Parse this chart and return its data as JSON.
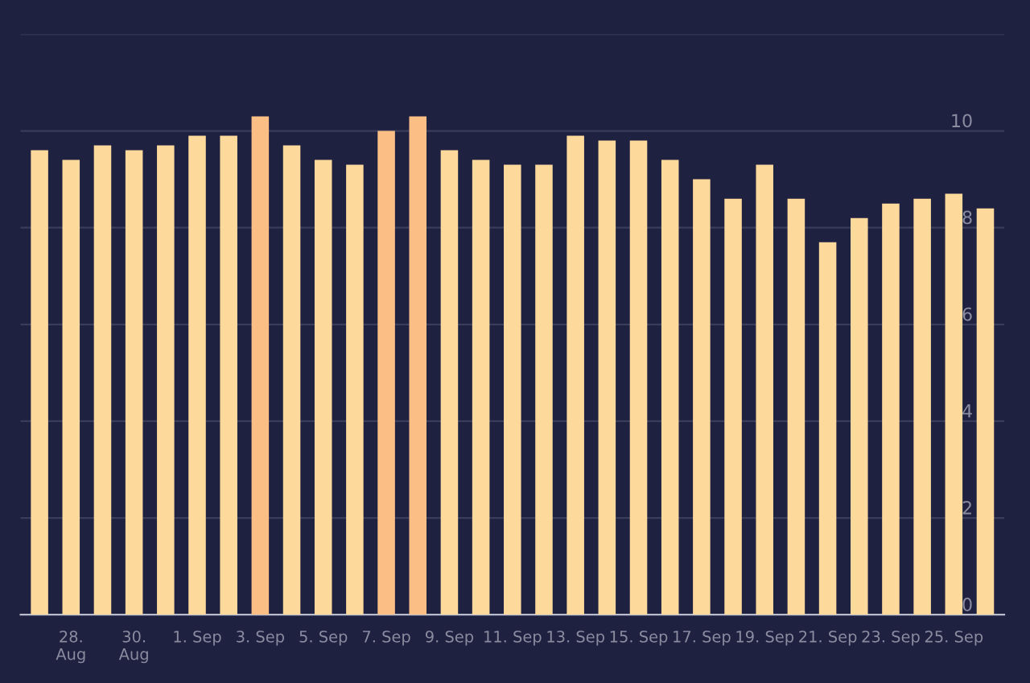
{
  "chart_data": {
    "type": "bar",
    "categories": [
      null,
      "28. Aug",
      null,
      "30. Aug",
      null,
      "1. Sep",
      null,
      "3. Sep",
      null,
      "5. Sep",
      null,
      "7. Sep",
      null,
      "9. Sep",
      null,
      "11. Sep",
      null,
      "13. Sep",
      null,
      "15. Sep",
      null,
      "17. Sep",
      null,
      "19. Sep",
      null,
      "21. Sep",
      null,
      "23. Sep",
      null,
      "25. Sep",
      null
    ],
    "values": [
      9.6,
      9.4,
      9.7,
      9.6,
      9.7,
      9.9,
      9.9,
      10.3,
      9.7,
      9.4,
      9.3,
      10.0,
      10.3,
      9.6,
      9.4,
      9.3,
      9.3,
      9.9,
      9.8,
      9.8,
      9.4,
      9.0,
      8.6,
      9.3,
      8.6,
      7.7,
      8.2,
      8.5,
      8.6,
      8.7,
      8.4
    ],
    "colors": [
      "#fdd99b",
      "#fdd99b",
      "#fdd99b",
      "#fdd99b",
      "#fdd99b",
      "#fdd99b",
      "#fdd99b",
      "#fbbf86",
      "#fdd99b",
      "#fdd99b",
      "#fdd99b",
      "#fbbf86",
      "#fbbf86",
      "#fdd99b",
      "#fdd99b",
      "#fdd99b",
      "#fdd99b",
      "#fdd99b",
      "#fdd99b",
      "#fdd99b",
      "#fdd99b",
      "#fdd99b",
      "#fdd99b",
      "#fdd99b",
      "#fdd99b",
      "#fdd99b",
      "#fdd99b",
      "#fdd99b",
      "#fdd99b",
      "#fdd99b",
      "#fdd99b"
    ],
    "ylim": [
      0,
      12
    ],
    "yticks": [
      0,
      2,
      4,
      6,
      8,
      10,
      {
        "value": 12,
        "label": null
      }
    ],
    "grid": "y"
  }
}
